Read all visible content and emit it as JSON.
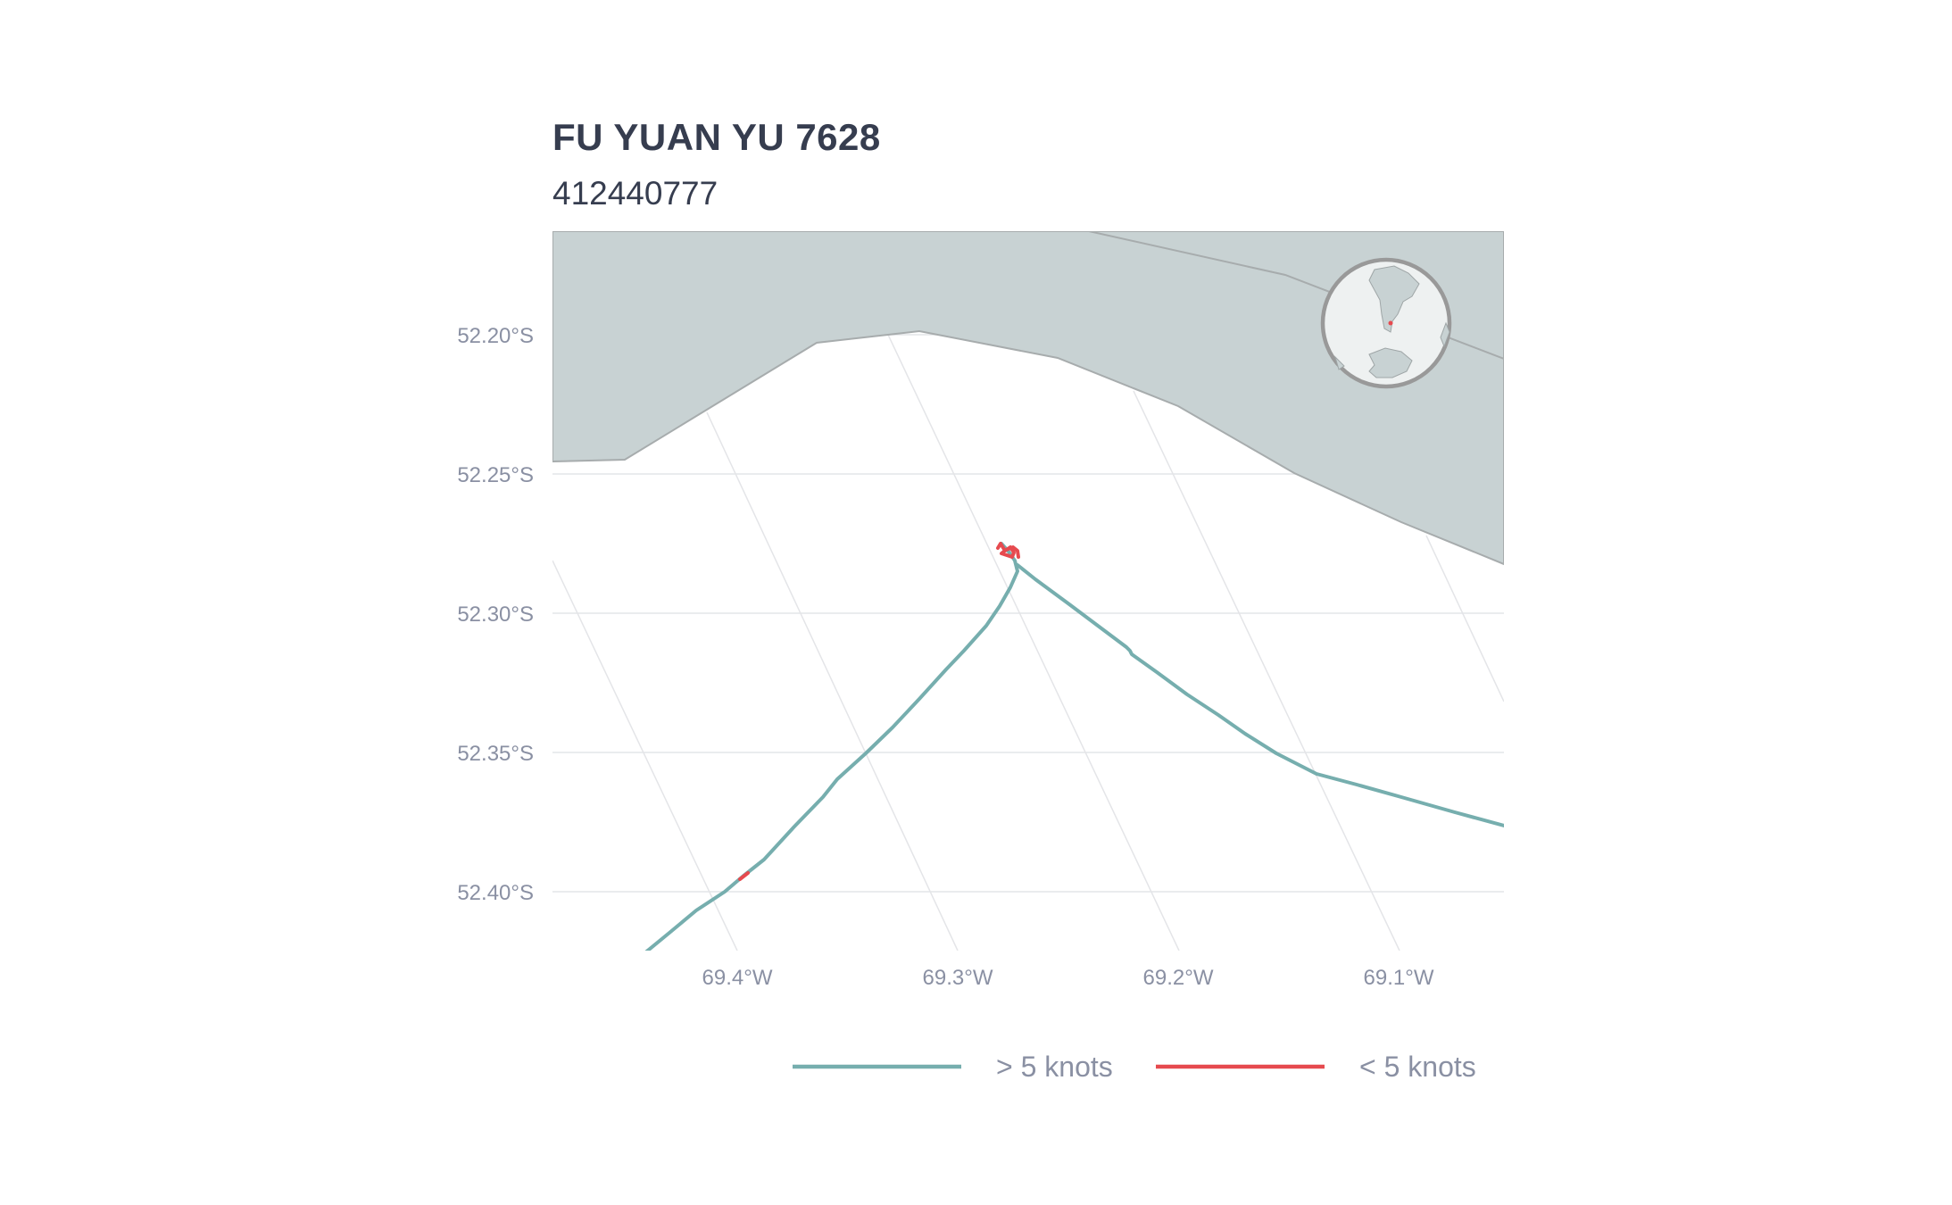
{
  "header": {
    "vessel_name": "FU YUAN YU 7628",
    "mmsi": "412440777"
  },
  "map": {
    "latitude_labels": [
      "52.20°S",
      "52.25°S",
      "52.30°S",
      "52.35°S",
      "52.40°S"
    ],
    "longitude_labels": [
      "69.4°W",
      "69.3°W",
      "69.2°W",
      "69.1°W"
    ],
    "land_color": "#c8d2d3",
    "land_outline_color": "#a7acad",
    "gridline_color": "#e4e5e8",
    "inset_globe": {
      "icon": "globe-inset-icon",
      "ocean_color": "#eef1f1",
      "ring_color": "#999999"
    }
  },
  "legend": {
    "items": [
      {
        "label": "> 5 knots",
        "color": "#76aeae"
      },
      {
        "label": "< 5 knots",
        "color": "#e64a4f"
      }
    ]
  },
  "track": {
    "fast_color": "#76aeae",
    "slow_color": "#e64a4f"
  }
}
